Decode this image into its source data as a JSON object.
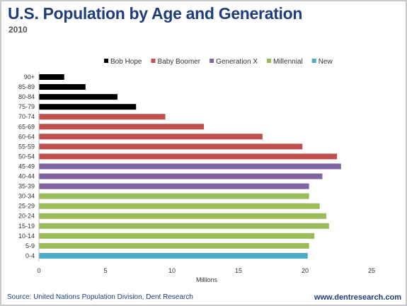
{
  "header": {
    "title": "U.S. Population by Age and Generation",
    "subtitle": "2010"
  },
  "footer": {
    "source": "Source: United Nations Population Division, Dent Research",
    "website": "www.dentresearch.com"
  },
  "chart_data": {
    "type": "bar",
    "orientation": "horizontal",
    "xlabel": "Millions",
    "ylabel": "",
    "xlim": [
      0,
      25
    ],
    "xticks": [
      0,
      5,
      10,
      15,
      20,
      25
    ],
    "grid": false,
    "legend_position": "top",
    "legend": [
      {
        "name": "Bob Hope",
        "color": "#000000"
      },
      {
        "name": "Baby Boomer",
        "color": "#c0504d"
      },
      {
        "name": "Generation X",
        "color": "#8064a2"
      },
      {
        "name": "Millennial",
        "color": "#9bbb59"
      },
      {
        "name": "New",
        "color": "#4bacc6"
      }
    ],
    "bars": [
      {
        "category": "90+",
        "value": 1.9,
        "group": "Bob Hope"
      },
      {
        "category": "85-89",
        "value": 3.5,
        "group": "Bob Hope"
      },
      {
        "category": "80-84",
        "value": 5.9,
        "group": "Bob Hope"
      },
      {
        "category": "75-79",
        "value": 7.3,
        "group": "Bob Hope"
      },
      {
        "category": "70-74",
        "value": 9.5,
        "group": "Baby Boomer"
      },
      {
        "category": "65-69",
        "value": 12.4,
        "group": "Baby Boomer"
      },
      {
        "category": "60-64",
        "value": 16.8,
        "group": "Baby Boomer"
      },
      {
        "category": "55-59",
        "value": 19.8,
        "group": "Baby Boomer"
      },
      {
        "category": "50-54",
        "value": 22.4,
        "group": "Baby Boomer"
      },
      {
        "category": "45-49",
        "value": 22.7,
        "group": "Generation X"
      },
      {
        "category": "40-44",
        "value": 21.3,
        "group": "Generation X"
      },
      {
        "category": "35-39",
        "value": 20.3,
        "group": "Generation X"
      },
      {
        "category": "30-34",
        "value": 20.3,
        "group": "Millennial"
      },
      {
        "category": "25-29",
        "value": 21.1,
        "group": "Millennial"
      },
      {
        "category": "20-24",
        "value": 21.6,
        "group": "Millennial"
      },
      {
        "category": "15-19",
        "value": 21.8,
        "group": "Millennial"
      },
      {
        "category": "10-14",
        "value": 20.7,
        "group": "Millennial"
      },
      {
        "category": "5-9",
        "value": 20.3,
        "group": "Millennial"
      },
      {
        "category": "0-4",
        "value": 20.2,
        "group": "New"
      }
    ]
  }
}
